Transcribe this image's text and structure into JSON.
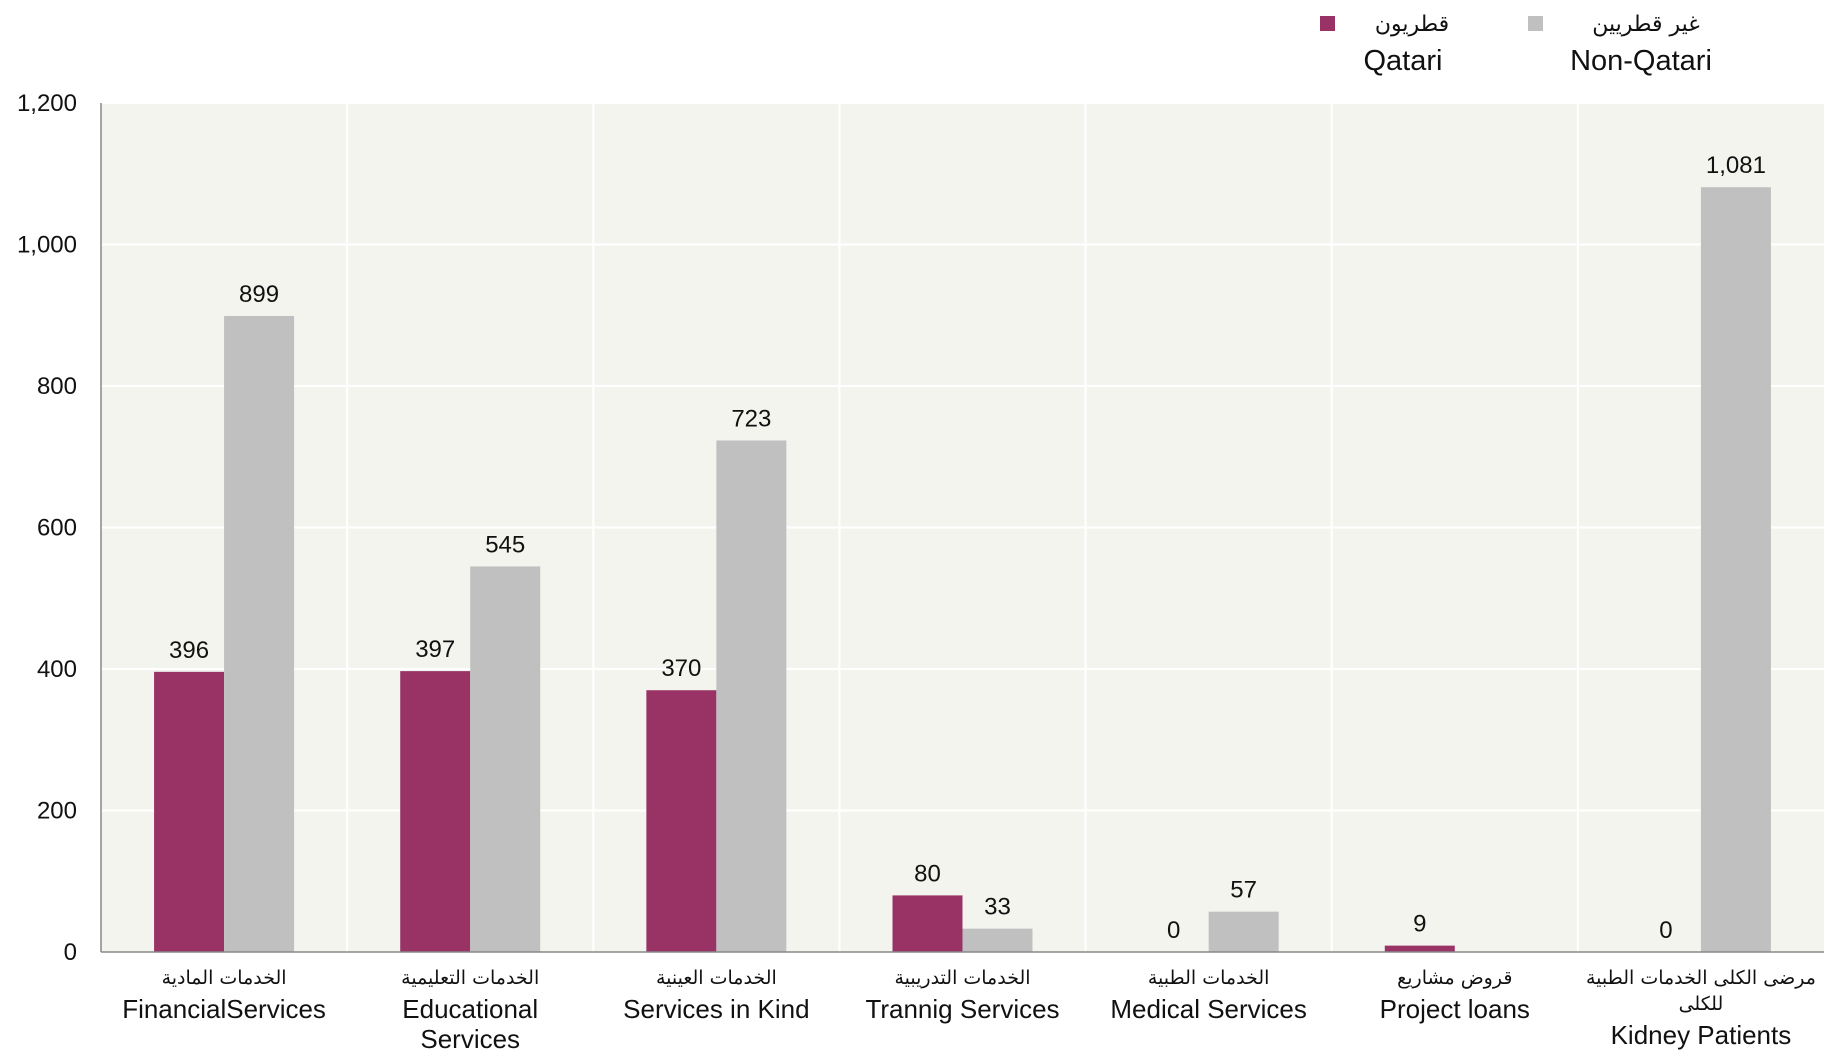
{
  "chart_data": {
    "type": "bar",
    "title": "",
    "xlabel": "",
    "ylabel": "",
    "ylim": [
      0,
      1200
    ],
    "yticks": [
      0,
      200,
      400,
      600,
      800,
      1000,
      1200
    ],
    "ytick_labels": [
      "0",
      "200",
      "400",
      "600",
      "800",
      "1,000",
      "1,200"
    ],
    "grid": true,
    "legend_position": "top-right",
    "categories": [
      {
        "en": [
          "FinancialServices"
        ],
        "ar": [
          "الخدمات  المادية"
        ]
      },
      {
        "en": [
          "Educational",
          "Services"
        ],
        "ar": [
          "الخدمات التعليمية"
        ]
      },
      {
        "en": [
          "Services in Kind"
        ],
        "ar": [
          "الخدمات العينية"
        ]
      },
      {
        "en": [
          "Trannig Services"
        ],
        "ar": [
          "الخدمات التدريبية"
        ]
      },
      {
        "en": [
          "Medical Services"
        ],
        "ar": [
          "الخدمات الطبية"
        ]
      },
      {
        "en": [
          "Project loans"
        ],
        "ar": [
          "قروض مشاريع"
        ]
      },
      {
        "en": [
          "Kidney Patients"
        ],
        "ar": [
          "مرضى الكلى الخدمات الطبية",
          "للكلى"
        ]
      }
    ],
    "series": [
      {
        "name": "Qatari",
        "name_ar": "قطريون",
        "color": "#993366",
        "values": [
          396,
          397,
          370,
          80,
          0,
          9,
          0
        ],
        "labels": [
          "396",
          "397",
          "370",
          "80",
          "0",
          "9",
          "0"
        ]
      },
      {
        "name": "Non-Qatari",
        "name_ar": "غير قطريين",
        "color": "#c0c0c0",
        "values": [
          899,
          545,
          723,
          33,
          57,
          null,
          1081
        ],
        "labels": [
          "899",
          "545",
          "723",
          "33",
          "57",
          null,
          "1,081"
        ]
      }
    ],
    "colors": {
      "plot_background": "#f4f4ee",
      "grid": "#ffffff",
      "axis": "#888888"
    }
  }
}
